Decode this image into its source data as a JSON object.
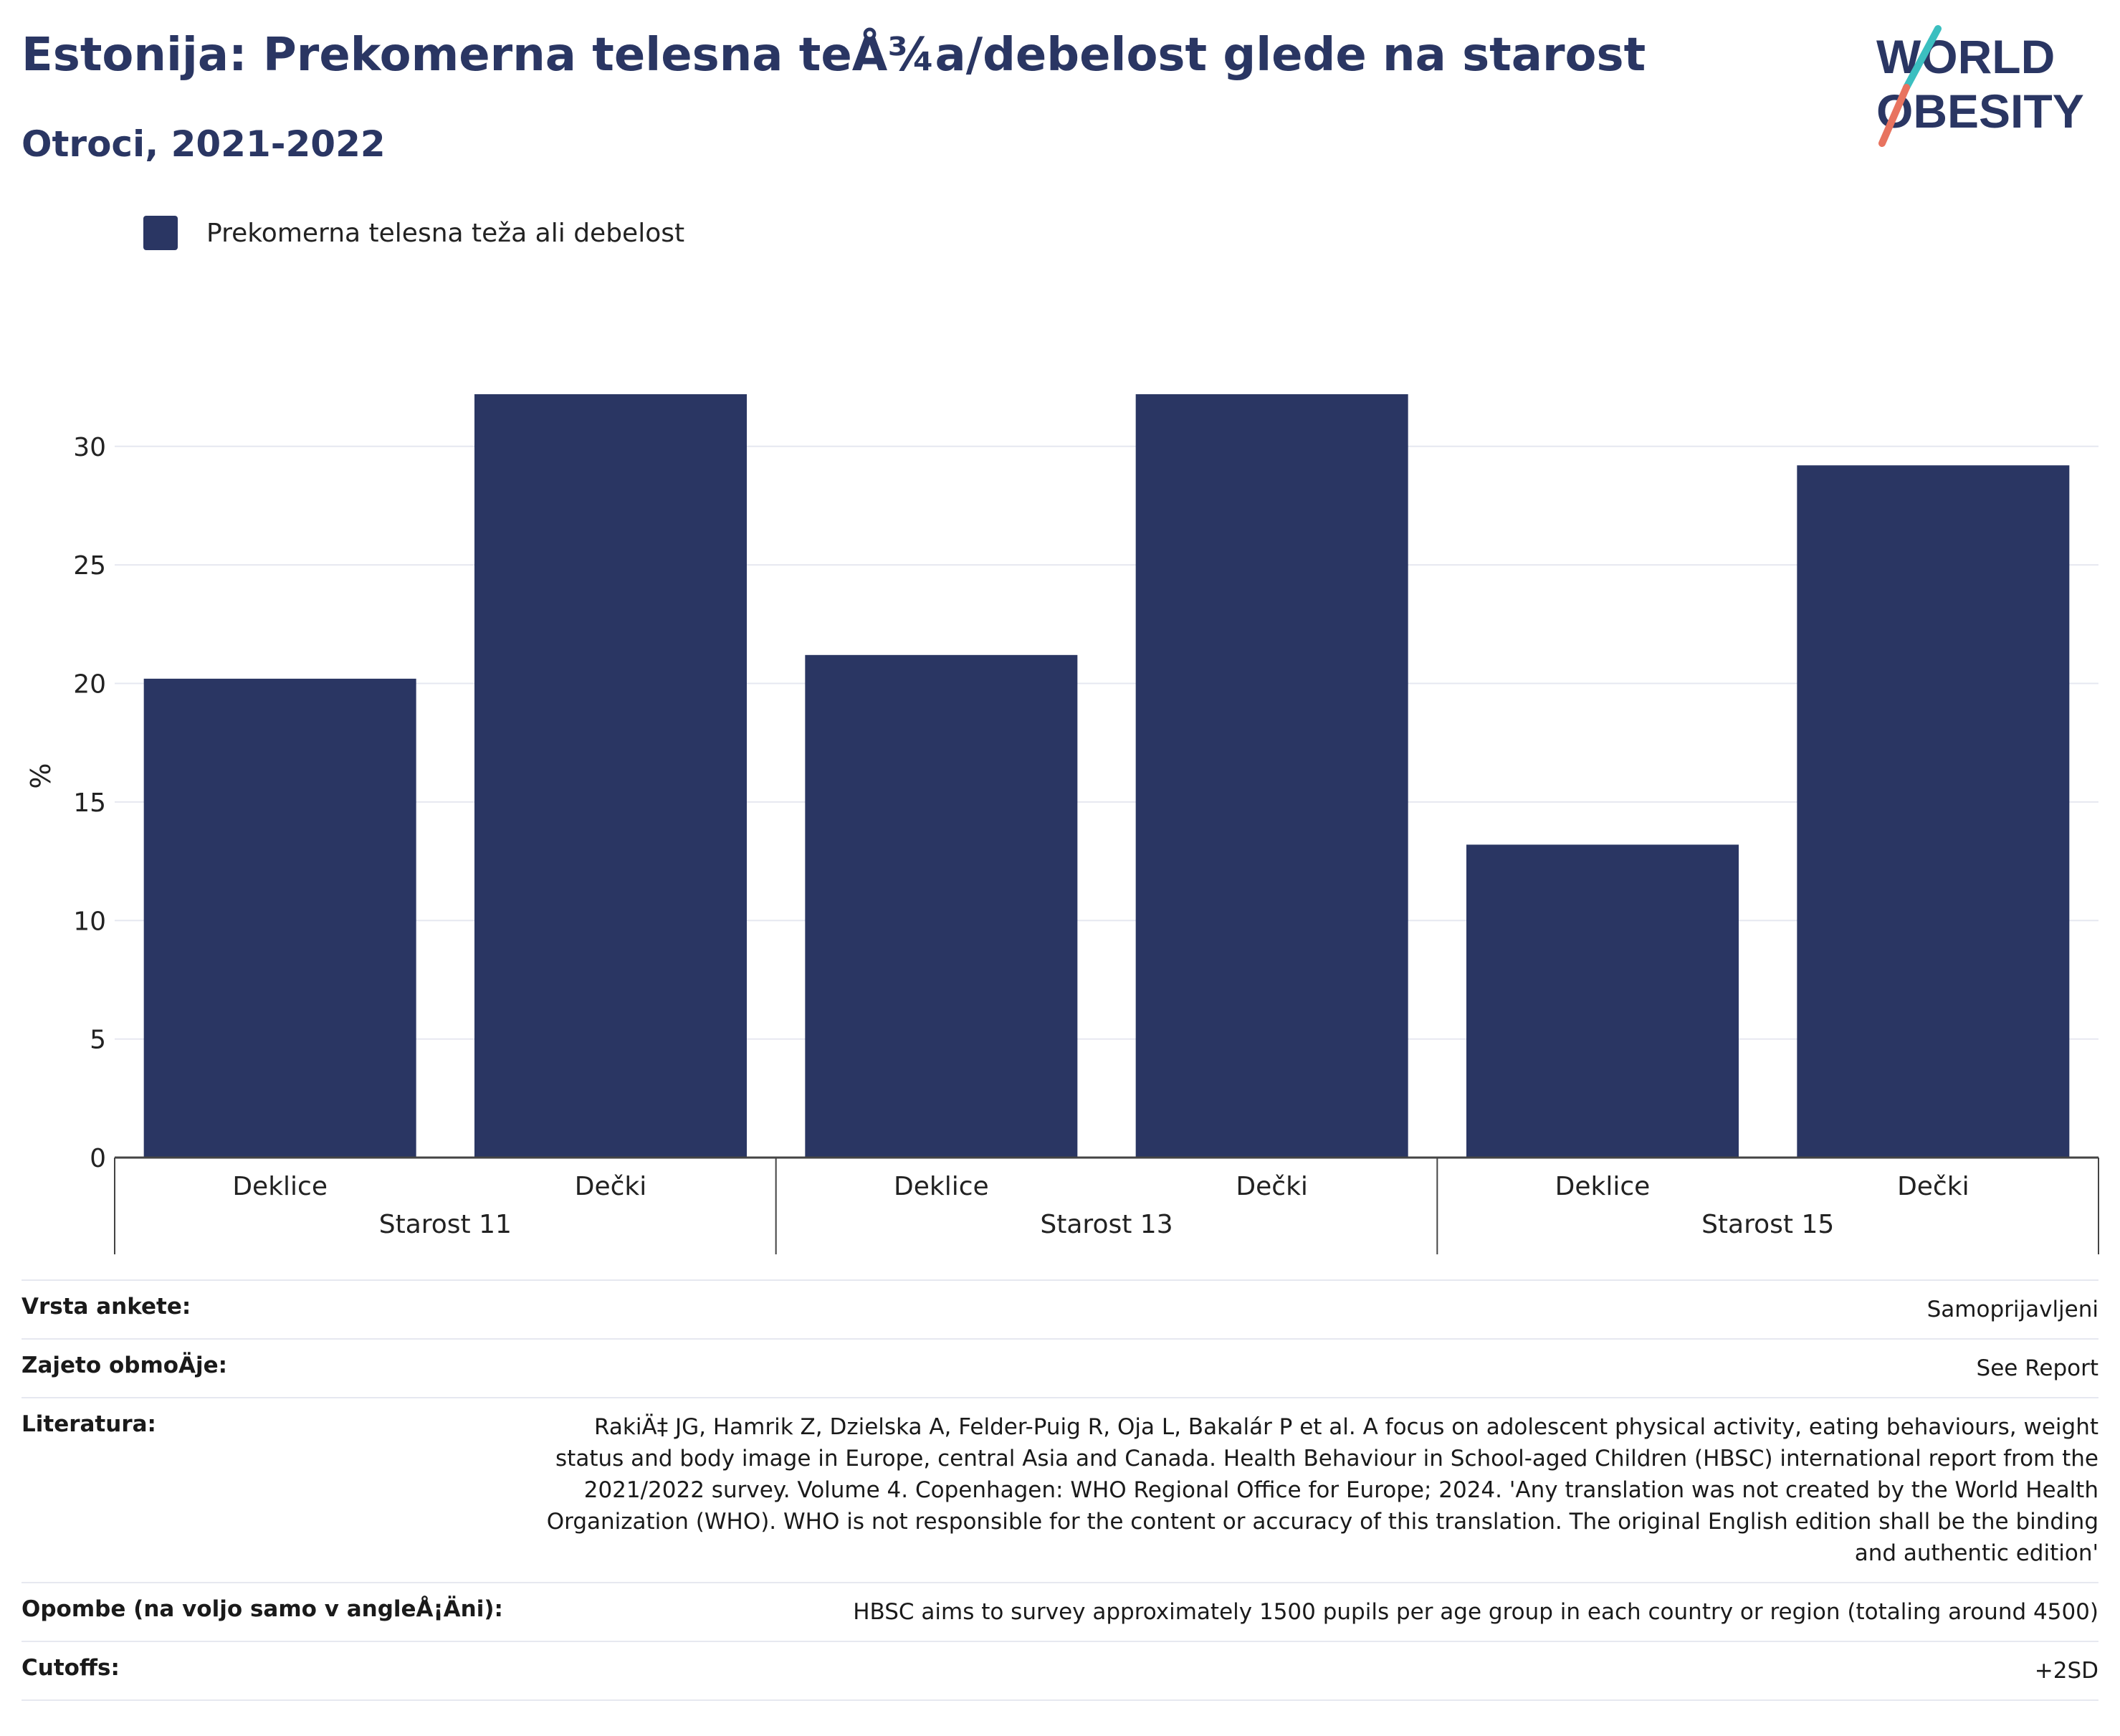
{
  "header": {
    "title": "Estonija: Prekomerna telesna teÅ¾a/debelost glede na starost",
    "subtitle": "Otroci, 2021-2022"
  },
  "logo": {
    "line1": "WORLD",
    "line2": "OBESITY",
    "accent_teal": "#3bbfc0",
    "accent_coral": "#e8735f"
  },
  "legend": {
    "label": "Prekomerna telesna teža ali debelost",
    "color": "#2a3663"
  },
  "chart_data": {
    "type": "bar",
    "ylabel": "%",
    "ylim": [
      0,
      32.2
    ],
    "yticks": [
      0,
      5,
      10,
      15,
      20,
      25,
      30
    ],
    "grid": true,
    "legend_position": "top-left",
    "color": "#2a3663",
    "groups": [
      {
        "label": "Starost 11",
        "bars": [
          {
            "label": "Deklice",
            "value": 20.2
          },
          {
            "label": "Dečki",
            "value": 32.2
          }
        ]
      },
      {
        "label": "Starost 13",
        "bars": [
          {
            "label": "Deklice",
            "value": 21.2
          },
          {
            "label": "Dečki",
            "value": 32.2
          }
        ]
      },
      {
        "label": "Starost 15",
        "bars": [
          {
            "label": "Deklice",
            "value": 13.2
          },
          {
            "label": "Dečki",
            "value": 29.2
          }
        ]
      }
    ]
  },
  "meta": [
    {
      "label": "Vrsta ankete:",
      "value": "Samoprijavljeni"
    },
    {
      "label": "Zajeto obmoÄje:",
      "value": "See Report"
    },
    {
      "label": "Literatura:",
      "value": "RakiÄ‡ JG, Hamrik Z, Dzielska A, Felder-Puig R, Oja L, Bakalár P et al. A focus on adolescent physical activity, eating behaviours, weight status and body image in Europe, central Asia and Canada. Health Behaviour in School-aged Children (HBSC) international report from the 2021/2022 survey. Volume 4. Copenhagen: WHO Regional Office for Europe; 2024. 'Any translation was not created by the World Health Organization (WHO). WHO is not responsible for the content or accuracy of this translation. The original English edition shall be the binding and authentic edition'"
    },
    {
      "label": "Opombe (na voljo samo v angleÅ¡Äni):",
      "value": "HBSC aims to survey approximately 1500 pupils per age group in each country or region (totaling around 4500)"
    },
    {
      "label": "Cutoffs:",
      "value": "+2SD"
    }
  ]
}
